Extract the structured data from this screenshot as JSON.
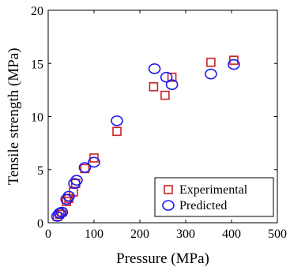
{
  "chart_data": {
    "type": "scatter",
    "title": "",
    "xlabel": "Pressure (MPa)",
    "ylabel": "Tensile strength (MPa)",
    "xlim": [
      0,
      500
    ],
    "ylim": [
      0,
      20
    ],
    "xticks": [
      0,
      100,
      200,
      300,
      400,
      500
    ],
    "yticks": [
      0,
      5,
      10,
      15,
      20
    ],
    "grid": false,
    "legend_position": "bottom-right",
    "series": [
      {
        "name": "Experimental",
        "marker": "square",
        "color": "#cc2222",
        "points": [
          {
            "x": 20,
            "y": 0.6
          },
          {
            "x": 25,
            "y": 0.8
          },
          {
            "x": 30,
            "y": 1.0
          },
          {
            "x": 40,
            "y": 2.0
          },
          {
            "x": 45,
            "y": 2.3
          },
          {
            "x": 55,
            "y": 2.9
          },
          {
            "x": 60,
            "y": 3.7
          },
          {
            "x": 80,
            "y": 5.1
          },
          {
            "x": 100,
            "y": 6.1
          },
          {
            "x": 150,
            "y": 8.6
          },
          {
            "x": 230,
            "y": 12.8
          },
          {
            "x": 255,
            "y": 12.0
          },
          {
            "x": 270,
            "y": 13.7
          },
          {
            "x": 355,
            "y": 15.1
          },
          {
            "x": 405,
            "y": 15.3
          }
        ]
      },
      {
        "name": "Predicted",
        "marker": "circle",
        "color": "#1a1aee",
        "points": [
          {
            "x": 20,
            "y": 0.6
          },
          {
            "x": 25,
            "y": 0.9
          },
          {
            "x": 30,
            "y": 1.0
          },
          {
            "x": 40,
            "y": 2.2
          },
          {
            "x": 45,
            "y": 2.5
          },
          {
            "x": 57,
            "y": 3.7
          },
          {
            "x": 62,
            "y": 4.0
          },
          {
            "x": 80,
            "y": 5.2
          },
          {
            "x": 100,
            "y": 5.7
          },
          {
            "x": 150,
            "y": 9.6
          },
          {
            "x": 232,
            "y": 14.5
          },
          {
            "x": 258,
            "y": 13.7
          },
          {
            "x": 270,
            "y": 13.0
          },
          {
            "x": 355,
            "y": 14.0
          },
          {
            "x": 405,
            "y": 14.9
          }
        ]
      }
    ]
  }
}
